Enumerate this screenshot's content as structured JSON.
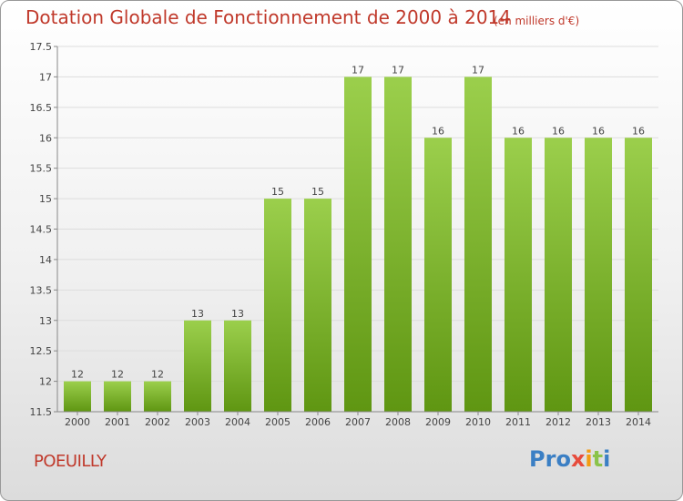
{
  "header": {
    "title": "Dotation Globale de Fonctionnement de 2000 à 2014",
    "unit": "(en milliers d'€)"
  },
  "footer": {
    "commune": "POEUILLY",
    "logo": {
      "letters": [
        "P",
        "r",
        "o",
        "x",
        "i",
        "t",
        "i"
      ],
      "colors": [
        "#3b7fc4",
        "#3b7fc4",
        "#3b7fc4",
        "#e74c3c",
        "#f39c12",
        "#8bc34a",
        "#3b7fc4"
      ]
    }
  },
  "chart_data": {
    "type": "bar",
    "title": "Dotation Globale de Fonctionnement de 2000 à 2014",
    "subtitle": "(en milliers d'€)",
    "xlabel": "",
    "ylabel": "",
    "categories": [
      "2000",
      "2001",
      "2002",
      "2003",
      "2004",
      "2005",
      "2006",
      "2007",
      "2008",
      "2009",
      "2010",
      "2011",
      "2012",
      "2013",
      "2014"
    ],
    "values": [
      12,
      12,
      12,
      13,
      13,
      15,
      15,
      17,
      17,
      16,
      17,
      16,
      16,
      16,
      16
    ],
    "ylim": [
      11.5,
      17.5
    ],
    "yticks": [
      "11.5",
      "12",
      "12.5",
      "13",
      "13.5",
      "14",
      "14.5",
      "15",
      "15.5",
      "16",
      "16.5",
      "17",
      "17.5"
    ],
    "grid": true,
    "legend": "none",
    "colors": {
      "bar_top": "#9bcf4c",
      "bar_bottom": "#5f9612",
      "grid": "#dddddd",
      "axis": "#888888"
    }
  }
}
